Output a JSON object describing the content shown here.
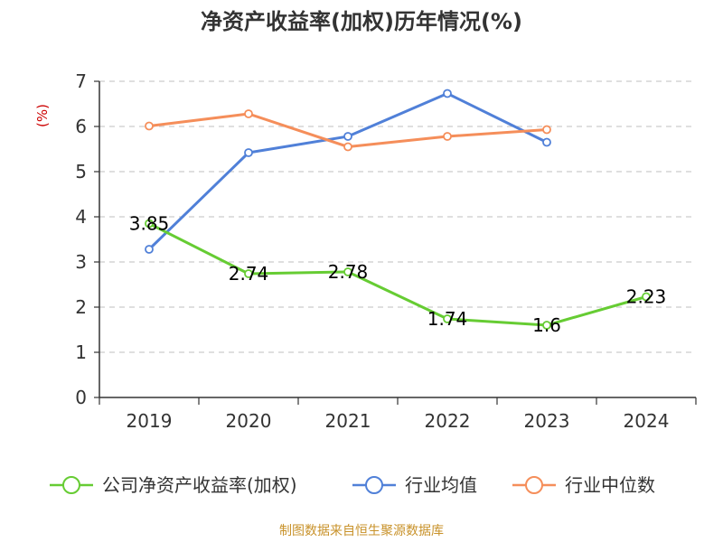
{
  "source_text": "制图数据来自恒生聚源数据库",
  "chart_data": {
    "type": "line",
    "title": "净资产收益率(加权)历年情况(%)",
    "xlabel": "",
    "ylabel": "(%)",
    "categories": [
      "2019",
      "2020",
      "2021",
      "2022",
      "2023",
      "2024"
    ],
    "ylim": [
      0,
      7
    ],
    "yticks": [
      "0",
      "1",
      "2",
      "3",
      "4",
      "5",
      "6",
      "7"
    ],
    "grid": true,
    "legend_position": "bottom",
    "series": [
      {
        "name": "公司净资产收益率(加权)",
        "color": "#66cc33",
        "values": [
          3.85,
          2.74,
          2.78,
          1.74,
          1.6,
          2.23
        ],
        "labels": [
          "3.85",
          "2.74",
          "2.78",
          "1.74",
          "1.6",
          "2.23"
        ],
        "show_labels": true
      },
      {
        "name": "行业均值",
        "color": "#5080d8",
        "values": [
          3.28,
          5.42,
          5.78,
          6.73,
          5.65,
          null
        ],
        "show_labels": false
      },
      {
        "name": "行业中位数",
        "color": "#f58e5a",
        "values": [
          6.01,
          6.28,
          5.55,
          5.78,
          5.93,
          null
        ],
        "show_labels": false
      }
    ]
  }
}
